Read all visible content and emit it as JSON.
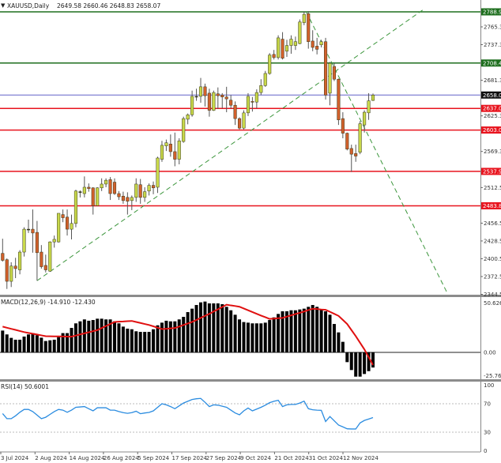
{
  "header": {
    "arrow_icon": "triangle-down-icon",
    "symbol": "XAUUSD,Daily",
    "ohlc": "2649.58 2660.46 2648.83 2658.07"
  },
  "colors": {
    "bull": "#c8d84a",
    "bear": "#d2602c",
    "outline": "#3a3a1a",
    "support_resistance": "#e8141e",
    "major_level": "#1e6e1e",
    "current_price": "#6464c8",
    "trendline": "#3c963c",
    "macd_signal": "#e01010",
    "rsi": "#2b8ce0"
  },
  "chart_data": [
    {
      "type": "candlestick",
      "symbol": "XAUUSD",
      "timeframe": "Daily",
      "ylim": [
        2344.5,
        2794.1
      ],
      "y_tick_labels": [
        "2765.30",
        "2737.30",
        "2681.30",
        "2625.30",
        "2569.30",
        "2512.50",
        "2456.50",
        "2428.50",
        "2400.50",
        "2372.50",
        "2344.50"
      ],
      "x_tick_labels": [
        "3 Jul 2024",
        "2 Aug 2024",
        "14 Aug 2024",
        "26 Aug 2024",
        "5 Sep 2024",
        "17 Sep 2024",
        "27 Sep 2024",
        "9 Oct 2024",
        "21 Oct 2024",
        "31 Oct 2024",
        "12 Nov 2024"
      ],
      "ohlc": [
        [
          2409,
          2432,
          2396,
          2398
        ],
        [
          2399,
          2401,
          2353,
          2365
        ],
        [
          2365,
          2395,
          2356,
          2389
        ],
        [
          2389,
          2402,
          2370,
          2385
        ],
        [
          2383,
          2414,
          2376,
          2411
        ],
        [
          2411,
          2450,
          2404,
          2447
        ],
        [
          2447,
          2462,
          2441,
          2447
        ],
        [
          2447,
          2478,
          2410,
          2441
        ],
        [
          2442,
          2460,
          2366,
          2410
        ],
        [
          2411,
          2422,
          2385,
          2388
        ],
        [
          2390,
          2407,
          2379,
          2383
        ],
        [
          2381,
          2428,
          2380,
          2427
        ],
        [
          2427,
          2437,
          2418,
          2431
        ],
        [
          2427,
          2472,
          2426,
          2472
        ],
        [
          2470,
          2478,
          2458,
          2465
        ],
        [
          2466,
          2478,
          2437,
          2447
        ],
        [
          2447,
          2470,
          2431,
          2456
        ],
        [
          2456,
          2509,
          2450,
          2507
        ],
        [
          2506,
          2508,
          2497,
          2506
        ],
        [
          2503,
          2530,
          2497,
          2513
        ],
        [
          2513,
          2519,
          2506,
          2511
        ],
        [
          2512,
          2513,
          2470,
          2484
        ],
        [
          2484,
          2513,
          2484,
          2512
        ],
        [
          2512,
          2527,
          2507,
          2518
        ],
        [
          2518,
          2527,
          2513,
          2524
        ],
        [
          2525,
          2529,
          2493,
          2503
        ],
        [
          2521,
          2527,
          2501,
          2503
        ],
        [
          2503,
          2507,
          2493,
          2498
        ],
        [
          2499,
          2506,
          2487,
          2492
        ],
        [
          2497,
          2505,
          2470,
          2491
        ],
        [
          2492,
          2500,
          2477,
          2497
        ],
        [
          2497,
          2527,
          2490,
          2518
        ],
        [
          2517,
          2526,
          2487,
          2497
        ],
        [
          2497,
          2513,
          2490,
          2506
        ],
        [
          2507,
          2519,
          2500,
          2516
        ],
        [
          2516,
          2522,
          2502,
          2512
        ],
        [
          2513,
          2561,
          2504,
          2559
        ],
        [
          2557,
          2586,
          2553,
          2579
        ],
        [
          2578,
          2588,
          2570,
          2583
        ],
        [
          2581,
          2596,
          2561,
          2569
        ],
        [
          2569,
          2599,
          2546,
          2557
        ],
        [
          2557,
          2590,
          2549,
          2586
        ],
        [
          2585,
          2624,
          2583,
          2621
        ],
        [
          2620,
          2629,
          2612,
          2627
        ],
        [
          2627,
          2665,
          2624,
          2656
        ],
        [
          2656,
          2668,
          2649,
          2656
        ],
        [
          2656,
          2685,
          2646,
          2671
        ],
        [
          2671,
          2676,
          2640,
          2657
        ],
        [
          2661,
          2668,
          2624,
          2634
        ],
        [
          2634,
          2665,
          2633,
          2662
        ],
        [
          2660,
          2670,
          2636,
          2657
        ],
        [
          2658,
          2661,
          2637,
          2655
        ],
        [
          2655,
          2671,
          2631,
          2652
        ],
        [
          2650,
          2658,
          2637,
          2642
        ],
        [
          2642,
          2648,
          2611,
          2621
        ],
        [
          2621,
          2623,
          2604,
          2606
        ],
        [
          2606,
          2634,
          2604,
          2630
        ],
        [
          2630,
          2661,
          2625,
          2656
        ],
        [
          2648,
          2655,
          2632,
          2647
        ],
        [
          2647,
          2667,
          2637,
          2662
        ],
        [
          2662,
          2683,
          2658,
          2673
        ],
        [
          2673,
          2696,
          2671,
          2692
        ],
        [
          2692,
          2724,
          2690,
          2721
        ],
        [
          2722,
          2729,
          2714,
          2717
        ],
        [
          2717,
          2752,
          2714,
          2748
        ],
        [
          2746,
          2757,
          2714,
          2716
        ],
        [
          2727,
          2745,
          2718,
          2736
        ],
        [
          2736,
          2752,
          2723,
          2746
        ],
        [
          2736,
          2750,
          2729,
          2742
        ],
        [
          2739,
          2777,
          2738,
          2773
        ],
        [
          2772,
          2789,
          2768,
          2785
        ],
        [
          2786,
          2790,
          2731,
          2742
        ],
        [
          2743,
          2760,
          2727,
          2733
        ],
        [
          2735,
          2748,
          2722,
          2730
        ],
        [
          2737,
          2745,
          2733,
          2742
        ],
        [
          2742,
          2748,
          2651,
          2658
        ],
        [
          2661,
          2710,
          2642,
          2708
        ],
        [
          2703,
          2708,
          2680,
          2683
        ],
        [
          2683,
          2684,
          2611,
          2619
        ],
        [
          2621,
          2631,
          2590,
          2598
        ],
        [
          2598,
          2599,
          2571,
          2573
        ],
        [
          2574,
          2580,
          2537,
          2565
        ],
        [
          2566,
          2580,
          2553,
          2562
        ],
        [
          2568,
          2617,
          2565,
          2613
        ],
        [
          2611,
          2634,
          2599,
          2631
        ],
        [
          2630,
          2661,
          2619,
          2649
        ],
        [
          2649.58,
          2660.46,
          2648.83,
          2658.07
        ]
      ],
      "horizontal_levels": [
        {
          "price": 2788.93,
          "label": "2788.93",
          "kind": "major_level"
        },
        {
          "price": 2708.4,
          "label": "2708.40",
          "kind": "major_level"
        },
        {
          "price": 2658.07,
          "label": "2658.07",
          "kind": "current_price"
        },
        {
          "price": 2637.02,
          "label": "2637.02",
          "kind": "support_resistance"
        },
        {
          "price": 2603.01,
          "label": "2603.01",
          "kind": "support_resistance"
        },
        {
          "price": 2537.91,
          "label": "2537.91",
          "kind": "support_resistance"
        },
        {
          "price": 2483.81,
          "label": "2483.81",
          "kind": "support_resistance"
        }
      ],
      "trendlines": [
        {
          "style": "dashed",
          "from": {
            "bar": 8,
            "price": 2366
          },
          "to": {
            "bar": 98,
            "price": 2794
          }
        },
        {
          "style": "dashed",
          "from": {
            "bar": 70.5,
            "price": 2789
          },
          "to": {
            "bar": 103.4,
            "price": 2344.5
          }
        }
      ]
    },
    {
      "type": "bar+line",
      "title": "MACD(12,26,9) -14.910 -12.430",
      "ylim": [
        -25.766,
        50.626
      ],
      "y_tick_labels": [
        "50.626",
        "0.00",
        "-25.766"
      ],
      "histogram": [
        21.5,
        17.7,
        14.3,
        12.5,
        12.5,
        15.6,
        17.7,
        19.0,
        16.9,
        14.5,
        11.2,
        11.9,
        12.5,
        15.1,
        19.0,
        19.0,
        24.1,
        28.6,
        30.6,
        32.5,
        31.2,
        31.9,
        33.2,
        33.2,
        32.5,
        32.5,
        30.6,
        28.6,
        25.4,
        23.4,
        22.8,
        20.8,
        20.2,
        20.2,
        20.2,
        22.8,
        26.7,
        29.3,
        31.2,
        30.6,
        30.6,
        32.5,
        35.0,
        39.7,
        43.1,
        46.7,
        49.3,
        50.1,
        48.3,
        48.3,
        48.3,
        47.5,
        44.9,
        41.5,
        37.1,
        32.5,
        29.9,
        29.3,
        28.6,
        28.6,
        28.6,
        29.3,
        31.9,
        34.5,
        37.9,
        40.5,
        40.5,
        41.5,
        41.5,
        42.3,
        43.1,
        44.9,
        46.7,
        44.9,
        42.3,
        40.5,
        37.1,
        28.0,
        19.7,
        10.4,
        -9.6,
        -17.4,
        -23.9,
        -23.9,
        -21.3,
        -18.5,
        -14.91
      ],
      "signal": [
        25.4,
        24.3,
        23.2,
        22.2,
        21.1,
        20,
        19.2,
        18.4,
        17.6,
        16.8,
        16,
        15.9,
        15.8,
        15.8,
        15.7,
        15.6,
        15.5,
        16.6,
        17.7,
        18.8,
        19.8,
        20.9,
        22,
        24,
        26,
        28,
        30,
        30.3,
        30.5,
        30.8,
        31,
        30,
        29,
        28,
        27,
        25.7,
        24.3,
        23,
        23.3,
        23.7,
        24,
        25.5,
        27,
        28.5,
        30,
        32,
        34,
        36,
        38,
        40.3,
        42.5,
        44.8,
        47,
        46.3,
        45.7,
        45,
        43.3,
        41.5,
        39.8,
        38,
        36.3,
        34.7,
        33,
        33.3,
        33.7,
        34,
        35.3,
        36.5,
        37.8,
        39,
        40.3,
        41.7,
        43,
        42.7,
        42.3,
        42,
        40,
        38,
        36,
        32,
        28,
        22,
        16,
        9.5,
        3,
        -4.7,
        -12.43
      ]
    },
    {
      "type": "line",
      "title": "RSI(14) 50.6001",
      "ylim": [
        0,
        100
      ],
      "y_tick_labels": [
        "100",
        "70",
        "30",
        "0"
      ],
      "levels": [
        70,
        30
      ],
      "values": [
        56.2,
        49,
        49,
        53,
        58,
        62,
        62,
        59,
        54,
        49,
        51,
        55,
        59,
        62,
        61,
        58,
        61,
        65,
        65.5,
        66,
        63,
        60,
        64.4,
        64.4,
        64.4,
        61,
        61,
        59,
        57.5,
        56.5,
        57.5,
        59.5,
        56,
        57,
        57.8,
        60,
        65,
        70,
        68.5,
        66,
        63,
        67,
        71,
        73.5,
        76,
        77,
        77.5,
        72,
        66,
        68.5,
        68,
        66.5,
        65,
        61,
        57,
        54.5,
        60,
        64,
        60,
        62.5,
        65,
        68,
        71.5,
        73.5,
        74.9,
        66,
        68.5,
        69,
        69,
        71,
        73.7,
        63,
        61.5,
        61,
        60.7,
        45,
        52,
        46,
        40,
        37.5,
        34.8,
        34.5,
        34.5,
        43,
        46.5,
        48.5,
        50.6
      ]
    }
  ]
}
